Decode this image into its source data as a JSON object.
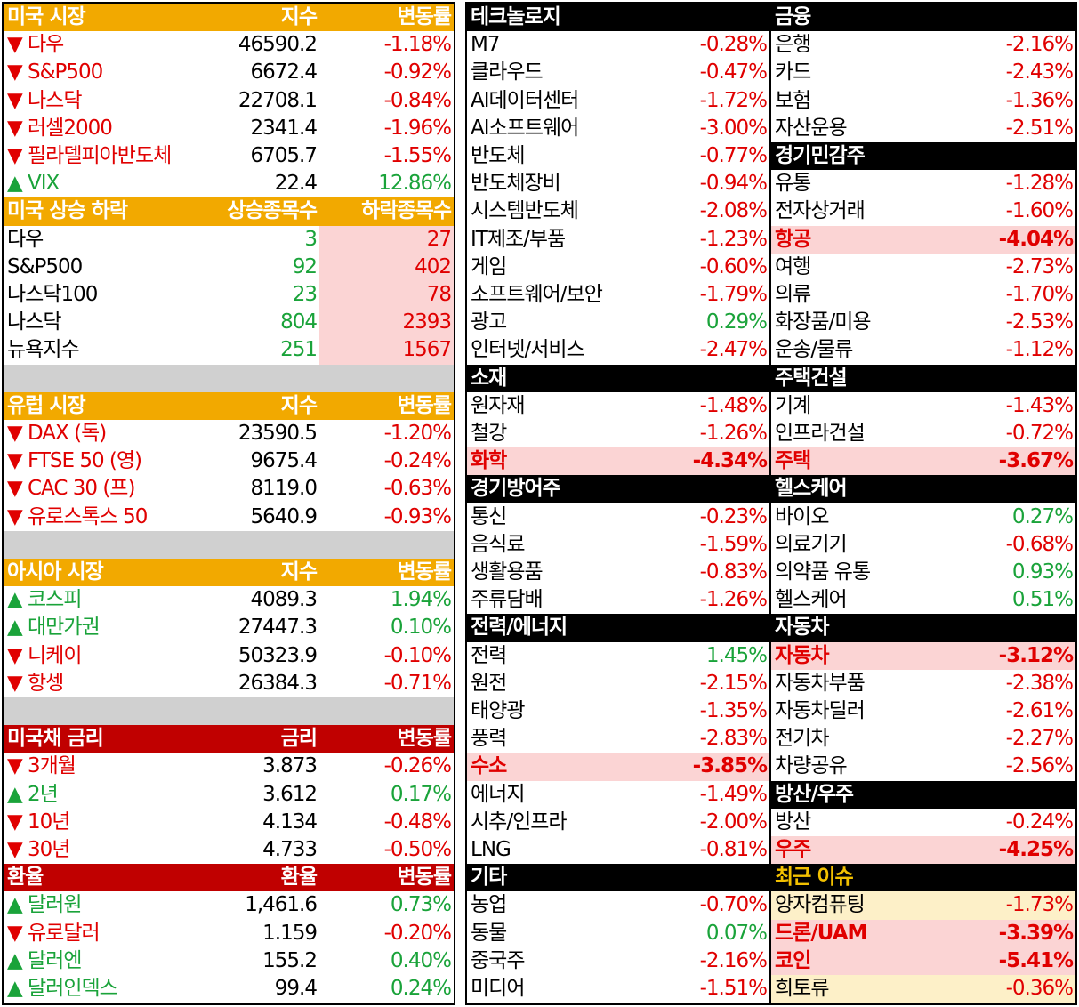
{
  "left": {
    "us_market": {
      "header": [
        "미국 시장",
        "지수",
        "변동률"
      ],
      "rows": [
        {
          "name": "▼ 다우",
          "value": "46590.2",
          "change": "-1.18%",
          "dir": "dn"
        },
        {
          "name": "▼ S&P500",
          "value": "6672.4",
          "change": "-0.92%",
          "dir": "dn"
        },
        {
          "name": "▼ 나스닥",
          "value": "22708.1",
          "change": "-0.84%",
          "dir": "dn"
        },
        {
          "name": "▼ 러셀2000",
          "value": "2341.4",
          "change": "-1.96%",
          "dir": "dn"
        },
        {
          "name": "▼ 필라델피아반도체",
          "value": "6705.7",
          "change": "-1.55%",
          "dir": "dn"
        },
        {
          "name": "▲ VIX",
          "value": "22.4",
          "change": "12.86%",
          "dir": "up"
        }
      ]
    },
    "us_breadth": {
      "header": [
        "미국 상승 하락",
        "상승종목수",
        "하락종목수"
      ],
      "rows": [
        {
          "name": "다우",
          "up": "3",
          "down": "27"
        },
        {
          "name": "S&P500",
          "up": "92",
          "down": "402"
        },
        {
          "name": "나스닥100",
          "up": "23",
          "down": "78"
        },
        {
          "name": "나스닥",
          "up": "804",
          "down": "2393"
        },
        {
          "name": "뉴욕지수",
          "up": "251",
          "down": "1567"
        }
      ]
    },
    "europe": {
      "header": [
        "유럽 시장",
        "지수",
        "변동률"
      ],
      "rows": [
        {
          "name": "▼ DAX (독)",
          "value": "23590.5",
          "change": "-1.20%",
          "dir": "dn"
        },
        {
          "name": "▼ FTSE 50 (영)",
          "value": "9675.4",
          "change": "-0.24%",
          "dir": "dn"
        },
        {
          "name": "▼ CAC 30 (프)",
          "value": "8119.0",
          "change": "-0.63%",
          "dir": "dn"
        },
        {
          "name": "▼ 유로스톡스 50",
          "value": "5640.9",
          "change": "-0.93%",
          "dir": "dn"
        }
      ]
    },
    "asia": {
      "header": [
        "아시아 시장",
        "지수",
        "변동률"
      ],
      "rows": [
        {
          "name": "▲ 코스피",
          "value": "4089.3",
          "change": "1.94%",
          "dir": "up"
        },
        {
          "name": "▲ 대만가권",
          "value": "27447.3",
          "change": "0.10%",
          "dir": "up"
        },
        {
          "name": "▼ 니케이",
          "value": "50323.9",
          "change": "-0.10%",
          "dir": "dn"
        },
        {
          "name": "▼ 항셍",
          "value": "26384.3",
          "change": "-0.71%",
          "dir": "dn"
        }
      ]
    },
    "us_bonds": {
      "header": [
        "미국채 금리",
        "금리",
        "변동률"
      ],
      "rows": [
        {
          "name": "▼ 3개월",
          "value": "3.873",
          "change": "-0.26%",
          "dir": "dn"
        },
        {
          "name": "▲ 2년",
          "value": "3.612",
          "change": "0.17%",
          "dir": "up"
        },
        {
          "name": "▼ 10년",
          "value": "4.134",
          "change": "-0.48%",
          "dir": "dn"
        },
        {
          "name": "▼ 30년",
          "value": "4.733",
          "change": "-0.50%",
          "dir": "dn"
        }
      ]
    },
    "fx": {
      "header": [
        "환율",
        "환율",
        "변동률"
      ],
      "rows": [
        {
          "name": "▲ 달러원",
          "value": "1,461.6",
          "change": "0.73%",
          "dir": "up"
        },
        {
          "name": "▼ 유로달러",
          "value": "1.159",
          "change": "-0.20%",
          "dir": "dn"
        },
        {
          "name": "▲ 달러엔",
          "value": "155.2",
          "change": "0.40%",
          "dir": "up"
        },
        {
          "name": "▲ 달러인덱스",
          "value": "99.4",
          "change": "0.24%",
          "dir": "up"
        }
      ]
    }
  },
  "right": {
    "colA": [
      {
        "type": "hdr",
        "title": "테크놀로지"
      },
      {
        "name": "M7",
        "change": "-0.28%",
        "dir": "dn"
      },
      {
        "name": "클라우드",
        "change": "-0.47%",
        "dir": "dn"
      },
      {
        "name": "AI데이터센터",
        "change": "-1.72%",
        "dir": "dn"
      },
      {
        "name": "AI소프트웨어",
        "change": "-3.00%",
        "dir": "dn"
      },
      {
        "name": "반도체",
        "change": "-0.77%",
        "dir": "dn"
      },
      {
        "name": "반도체장비",
        "change": "-0.94%",
        "dir": "dn"
      },
      {
        "name": "시스템반도체",
        "change": "-2.08%",
        "dir": "dn"
      },
      {
        "name": "IT제조/부품",
        "change": "-1.23%",
        "dir": "dn"
      },
      {
        "name": "게임",
        "change": "-0.60%",
        "dir": "dn"
      },
      {
        "name": "소프트웨어/보안",
        "change": "-1.79%",
        "dir": "dn"
      },
      {
        "name": "광고",
        "change": "0.29%",
        "dir": "up"
      },
      {
        "name": "인터넷/서비스",
        "change": "-2.47%",
        "dir": "dn"
      },
      {
        "type": "hdr",
        "title": "소재"
      },
      {
        "name": "원자재",
        "change": "-1.48%",
        "dir": "dn"
      },
      {
        "name": "철강",
        "change": "-1.26%",
        "dir": "dn"
      },
      {
        "name": "화학",
        "change": "-4.34%",
        "dir": "dn",
        "hl": "pink"
      },
      {
        "type": "hdr",
        "title": "경기방어주"
      },
      {
        "name": "통신",
        "change": "-0.23%",
        "dir": "dn"
      },
      {
        "name": "음식료",
        "change": "-1.59%",
        "dir": "dn"
      },
      {
        "name": "생활용품",
        "change": "-0.83%",
        "dir": "dn"
      },
      {
        "name": "주류담배",
        "change": "-1.26%",
        "dir": "dn"
      },
      {
        "type": "hdr",
        "title": "전력/에너지"
      },
      {
        "name": "전력",
        "change": "1.45%",
        "dir": "up"
      },
      {
        "name": "원전",
        "change": "-2.15%",
        "dir": "dn"
      },
      {
        "name": "태양광",
        "change": "-1.35%",
        "dir": "dn"
      },
      {
        "name": "풍력",
        "change": "-2.83%",
        "dir": "dn"
      },
      {
        "name": "수소",
        "change": "-3.85%",
        "dir": "dn",
        "hl": "pink"
      },
      {
        "name": "에너지",
        "change": "-1.49%",
        "dir": "dn"
      },
      {
        "name": "시추/인프라",
        "change": "-2.00%",
        "dir": "dn"
      },
      {
        "name": "LNG",
        "change": "-0.81%",
        "dir": "dn"
      },
      {
        "type": "hdr",
        "title": "기타"
      },
      {
        "name": "농업",
        "change": "-0.70%",
        "dir": "dn"
      },
      {
        "name": "동물",
        "change": "0.07%",
        "dir": "up"
      },
      {
        "name": "중국주",
        "change": "-2.16%",
        "dir": "dn"
      },
      {
        "name": "미디어",
        "change": "-1.51%",
        "dir": "dn"
      }
    ],
    "colB": [
      {
        "type": "hdr",
        "title": "금융"
      },
      {
        "name": "은행",
        "change": "-2.16%",
        "dir": "dn"
      },
      {
        "name": "카드",
        "change": "-2.43%",
        "dir": "dn"
      },
      {
        "name": "보험",
        "change": "-1.36%",
        "dir": "dn"
      },
      {
        "name": "자산운용",
        "change": "-2.51%",
        "dir": "dn"
      },
      {
        "type": "hdr",
        "title": "경기민감주"
      },
      {
        "name": "유통",
        "change": "-1.28%",
        "dir": "dn"
      },
      {
        "name": "전자상거래",
        "change": "-1.60%",
        "dir": "dn"
      },
      {
        "name": "항공",
        "change": "-4.04%",
        "dir": "dn",
        "hl": "pink"
      },
      {
        "name": "여행",
        "change": "-2.73%",
        "dir": "dn"
      },
      {
        "name": "의류",
        "change": "-1.70%",
        "dir": "dn"
      },
      {
        "name": "화장품/미용",
        "change": "-2.53%",
        "dir": "dn"
      },
      {
        "name": "운송/물류",
        "change": "-1.12%",
        "dir": "dn"
      },
      {
        "type": "hdr",
        "title": "주택건설"
      },
      {
        "name": "기계",
        "change": "-1.43%",
        "dir": "dn"
      },
      {
        "name": "인프라건설",
        "change": "-0.72%",
        "dir": "dn"
      },
      {
        "name": "주택",
        "change": "-3.67%",
        "dir": "dn",
        "hl": "pink"
      },
      {
        "type": "hdr",
        "title": "헬스케어"
      },
      {
        "name": "바이오",
        "change": "0.27%",
        "dir": "up"
      },
      {
        "name": "의료기기",
        "change": "-0.68%",
        "dir": "dn"
      },
      {
        "name": "의약품 유통",
        "change": "0.93%",
        "dir": "up"
      },
      {
        "name": "헬스케어",
        "change": "0.51%",
        "dir": "up"
      },
      {
        "type": "hdr",
        "title": "자동차"
      },
      {
        "name": "자동차",
        "change": "-3.12%",
        "dir": "dn",
        "hl": "pink"
      },
      {
        "name": "자동차부품",
        "change": "-2.38%",
        "dir": "dn"
      },
      {
        "name": "자동차딜러",
        "change": "-2.61%",
        "dir": "dn"
      },
      {
        "name": "전기차",
        "change": "-2.27%",
        "dir": "dn"
      },
      {
        "name": "차량공유",
        "change": "-2.56%",
        "dir": "dn"
      },
      {
        "type": "hdr",
        "title": "방산/우주"
      },
      {
        "name": "방산",
        "change": "-0.24%",
        "dir": "dn"
      },
      {
        "name": "우주",
        "change": "-4.25%",
        "dir": "dn",
        "hl": "pink"
      },
      {
        "type": "hdr",
        "title": "최근 이슈",
        "gold": true
      },
      {
        "name": "양자컴퓨팅",
        "change": "-1.73%",
        "dir": "dn",
        "hl": "cream"
      },
      {
        "name": "드론/UAM",
        "change": "-3.39%",
        "dir": "dn",
        "hl": "pink"
      },
      {
        "name": "코인",
        "change": "-5.41%",
        "dir": "dn",
        "hl": "pink"
      },
      {
        "name": "희토류",
        "change": "-0.36%",
        "dir": "dn",
        "hl": "cream"
      }
    ]
  },
  "colors": {
    "orange": "#f2a900",
    "red_header": "#c00000",
    "down": "#e00000",
    "up": "#1aa33a",
    "pink": "#fbd4d4",
    "cream": "#fdf0c8",
    "gap": "#d0d0d0"
  }
}
